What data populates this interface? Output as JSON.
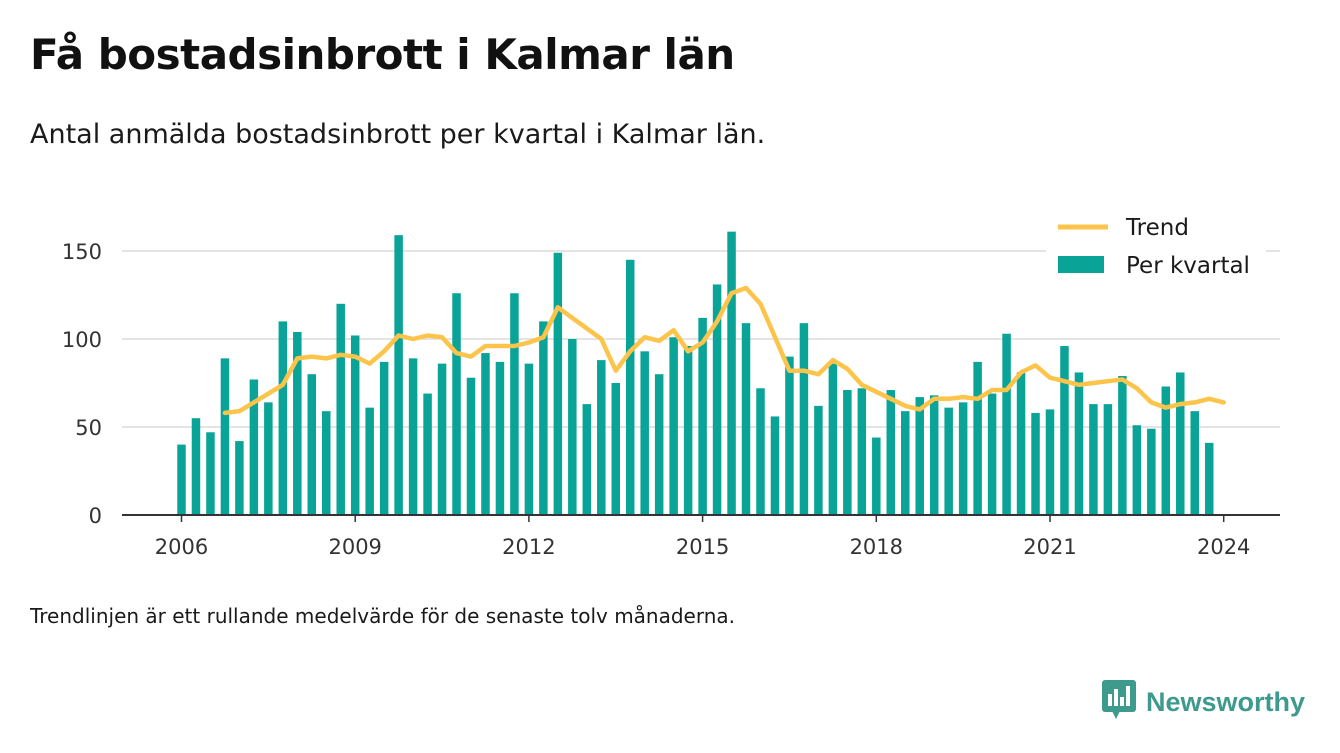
{
  "title": "Få bostadsinbrott i Kalmar län",
  "subtitle": "Antal anmälda bostadsinbrott per kvartal i Kalmar län.",
  "footnote": "Trendlinjen är ett rullande medelvärde för de senaste tolv månaderna.",
  "brand": {
    "name": "Newsworthy",
    "icon": "newsworthy-logo-icon"
  },
  "colors": {
    "bars": "#0aa398",
    "trend": "#fcc44a",
    "axis": "#333333",
    "grid": "#dcdcdc"
  },
  "chart_data": {
    "type": "bar",
    "x_start": 2006.0,
    "x_step": 0.25,
    "ylim": [
      0,
      170
    ],
    "xlim": [
      2005.0,
      2025.0
    ],
    "yticks": [
      0,
      50,
      100,
      150
    ],
    "xticks": [
      2006,
      2009,
      2012,
      2015,
      2018,
      2021,
      2024
    ],
    "grid": true,
    "legend_position": "top-right",
    "series": [
      {
        "name": "Per kvartal",
        "type": "bar",
        "values": [
          40,
          55,
          47,
          89,
          42,
          77,
          64,
          110,
          104,
          80,
          59,
          120,
          102,
          61,
          87,
          159,
          89,
          69,
          86,
          126,
          78,
          92,
          87,
          126,
          86,
          110,
          149,
          100,
          63,
          88,
          75,
          145,
          93,
          80,
          101,
          96,
          112,
          131,
          161,
          109,
          72,
          56,
          90,
          109,
          62,
          86,
          71,
          72,
          44,
          71,
          59,
          67,
          68,
          61,
          64,
          87,
          69,
          103,
          81,
          58,
          60,
          96,
          81,
          63,
          63,
          79,
          51,
          49,
          73,
          81,
          59,
          41
        ]
      },
      {
        "name": "Trend",
        "type": "line",
        "x_start": 2006.75,
        "values": [
          58,
          59,
          64,
          69,
          74,
          89,
          90,
          89,
          91,
          90,
          86,
          93,
          102,
          100,
          102,
          101,
          92,
          90,
          96,
          96,
          96,
          98,
          101,
          118,
          112,
          106,
          100,
          82,
          93,
          101,
          99,
          105,
          93,
          98,
          110,
          126,
          129,
          120,
          101,
          82,
          82,
          80,
          88,
          83,
          74,
          70,
          66,
          62,
          60,
          66,
          66,
          67,
          66,
          71,
          71,
          81,
          85,
          78,
          76,
          74,
          75,
          76,
          77,
          72,
          64,
          61,
          63,
          64,
          66,
          64
        ]
      }
    ]
  }
}
